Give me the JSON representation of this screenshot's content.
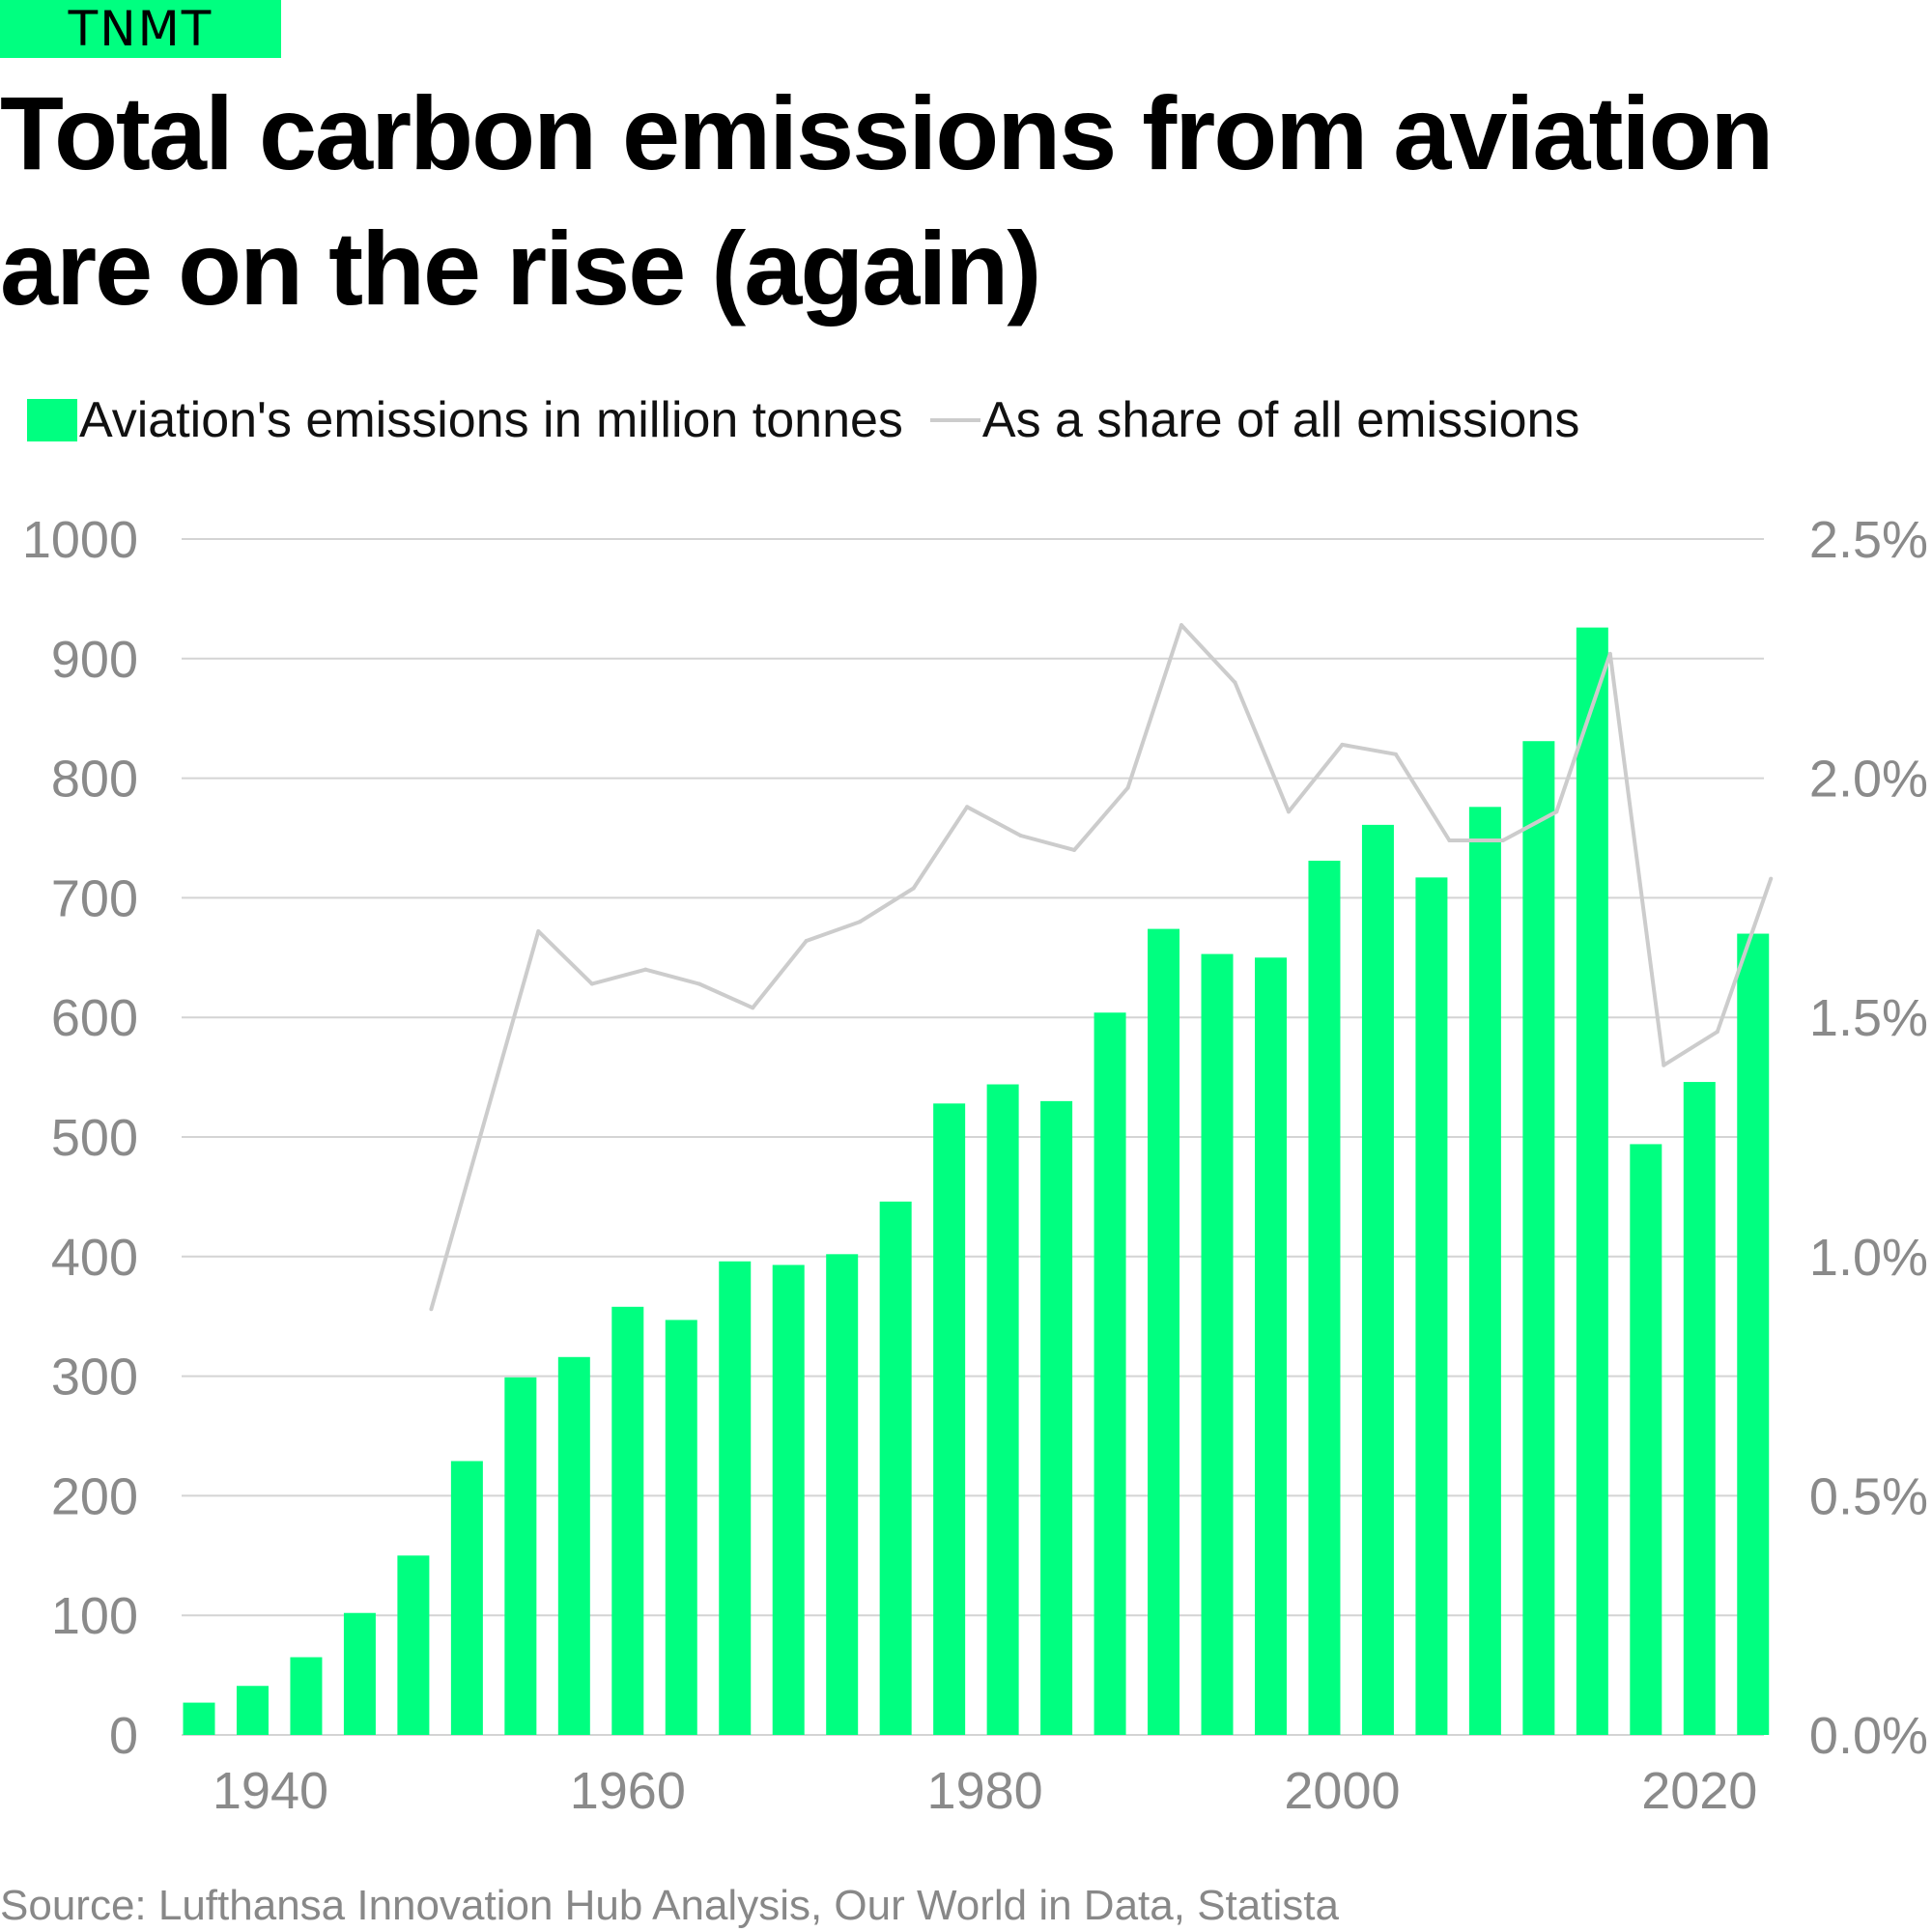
{
  "brand": {
    "name": "TNMT",
    "color": "#00FF80"
  },
  "title": "Total carbon emissions from aviation are on the rise (again)",
  "legend": {
    "bars_label": "Aviation's emissions in million tonnes",
    "line_label": "As a share of all emissions"
  },
  "colors": {
    "bar": "#00FF80",
    "line": "#cccccc",
    "grid": "#d4d4d4",
    "tick": "#8a8a8a"
  },
  "source": "Source: Lufthansa Innovation Hub Analysis, Our World in Data, Statista",
  "chart_data": {
    "type": "bar",
    "title": "Total carbon emissions from aviation are on the rise (again)",
    "xlabel": "",
    "ylabel": "",
    "ylim": [
      0,
      1000
    ],
    "y2lim": [
      0,
      2.5
    ],
    "yticks": [
      "0",
      "100",
      "200",
      "300",
      "400",
      "500",
      "600",
      "700",
      "800",
      "900",
      "1000"
    ],
    "y2ticks": [
      "0.0%",
      "0.5%",
      "1.0%",
      "1.5%",
      "2.0%",
      "2.5%"
    ],
    "xticks": [
      {
        "label": "1940",
        "x": 1940
      },
      {
        "label": "1960",
        "x": 1960
      },
      {
        "label": "1980",
        "x": 1980
      },
      {
        "label": "2000",
        "x": 2000
      },
      {
        "label": "2020",
        "x": 2020
      }
    ],
    "grid": true,
    "legend": "top-left",
    "x": [
      1936,
      1939,
      1942,
      1945,
      1948,
      1951,
      1954,
      1957,
      1960,
      1963,
      1966,
      1969,
      1972,
      1975,
      1978,
      1981,
      1984,
      1987,
      1990,
      1993,
      1996,
      1999,
      2002,
      2005,
      2008,
      2011,
      2014,
      2017,
      2020,
      2023
    ],
    "series": [
      {
        "name": "Aviation's emissions in million tonnes",
        "type": "bar",
        "axis": "left",
        "values": [
          27,
          41,
          65,
          102,
          150,
          229,
          299,
          316,
          358,
          347,
          396,
          393,
          402,
          446,
          528,
          544,
          530,
          604,
          674,
          653,
          650,
          731,
          761,
          717,
          776,
          831,
          926,
          494,
          546,
          670
        ]
      },
      {
        "name": "As a share of all emissions",
        "type": "line",
        "axis": "right",
        "x": [
          1949,
          1955,
          1958,
          1961,
          1964,
          1967,
          1970,
          1973,
          1976,
          1979,
          1982,
          1985,
          1988,
          1991,
          1994,
          1997,
          2000,
          2003,
          2006,
          2009,
          2012,
          2015,
          2018,
          2021,
          2024
        ],
        "values": [
          0.89,
          1.68,
          1.57,
          1.6,
          1.57,
          1.52,
          1.66,
          1.7,
          1.77,
          1.94,
          1.88,
          1.85,
          1.98,
          2.32,
          2.2,
          1.93,
          2.07,
          2.05,
          1.87,
          1.87,
          1.93,
          2.26,
          1.4,
          1.47,
          1.79
        ]
      }
    ]
  }
}
